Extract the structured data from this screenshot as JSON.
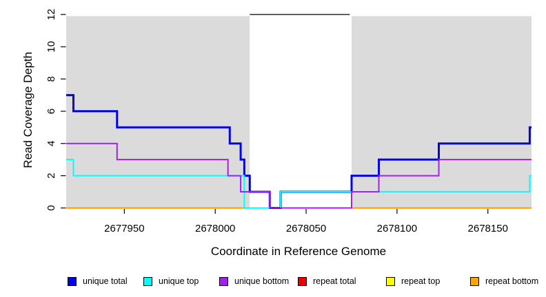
{
  "chart_data": {
    "type": "line",
    "subtype": "step-coverage",
    "title": "",
    "xlabel": "Coordinate in Reference Genome",
    "ylabel": "Read Coverage Depth",
    "xlim": [
      2677918,
      2678174
    ],
    "ylim": [
      0,
      12
    ],
    "x_ticks": [
      2677950,
      2678000,
      2678050,
      2678100,
      2678150
    ],
    "y_ticks": [
      0,
      2,
      4,
      6,
      8,
      10,
      12
    ],
    "grid": false,
    "legend_position": "bottom",
    "background_regions": [
      {
        "x1": 2677918,
        "x2": 2678019,
        "fill": "#DBDBDB"
      },
      {
        "x1": 2678019,
        "x2": 2678075,
        "fill": "#FFFFFF"
      },
      {
        "x1": 2678075,
        "x2": 2678174,
        "fill": "#DBDBDB"
      }
    ],
    "gap_marker_line": {
      "x1": 2678019,
      "x2": 2678074,
      "y": 12,
      "color": "#000000"
    },
    "series": [
      {
        "name": "repeat total",
        "color": "#EE0000",
        "line_width": 2,
        "steps": [
          [
            2677918,
            0
          ]
        ],
        "x_end": 2678174
      },
      {
        "name": "repeat top",
        "color": "#FFFF00",
        "line_width": 2,
        "steps": [
          [
            2677918,
            0
          ]
        ],
        "x_end": 2678174
      },
      {
        "name": "repeat bottom",
        "color": "#FFA500",
        "line_width": 2,
        "steps": [
          [
            2677918,
            0
          ]
        ],
        "x_end": 2678174
      },
      {
        "name": "unique total",
        "color": "#0000EE",
        "line_width": 3,
        "steps": [
          [
            2677918,
            7
          ],
          [
            2677922,
            6
          ],
          [
            2677946,
            5
          ],
          [
            2678008,
            4
          ],
          [
            2678014,
            3
          ],
          [
            2678016,
            2
          ],
          [
            2678019,
            1
          ],
          [
            2678030,
            0
          ],
          [
            2678036,
            1
          ],
          [
            2678075,
            2
          ],
          [
            2678090,
            3
          ],
          [
            2678123,
            4
          ],
          [
            2678173,
            5
          ]
        ],
        "x_end": 2678174
      },
      {
        "name": "unique top",
        "color": "#00FFFF",
        "line_width": 2,
        "steps": [
          [
            2677918,
            3
          ],
          [
            2677922,
            2
          ],
          [
            2678016,
            0
          ],
          [
            2678036,
            1
          ],
          [
            2678173,
            2
          ]
        ],
        "x_end": 2678174
      },
      {
        "name": "unique bottom",
        "color": "#A020F0",
        "line_width": 2,
        "steps": [
          [
            2677918,
            4
          ],
          [
            2677946,
            3
          ],
          [
            2678007,
            2
          ],
          [
            2678014,
            1
          ],
          [
            2678030,
            0
          ],
          [
            2678075,
            1
          ],
          [
            2678090,
            2
          ],
          [
            2678123,
            3
          ]
        ],
        "x_end": 2678174
      }
    ]
  },
  "legend": {
    "items": [
      {
        "label": "unique total",
        "color": "#0000EE"
      },
      {
        "label": "unique top",
        "color": "#00FFFF"
      },
      {
        "label": "unique bottom",
        "color": "#A020F0"
      },
      {
        "label": "repeat total",
        "color": "#EE0000"
      },
      {
        "label": "repeat top",
        "color": "#FFFF00"
      },
      {
        "label": "repeat bottom",
        "color": "#FFA500"
      }
    ]
  }
}
